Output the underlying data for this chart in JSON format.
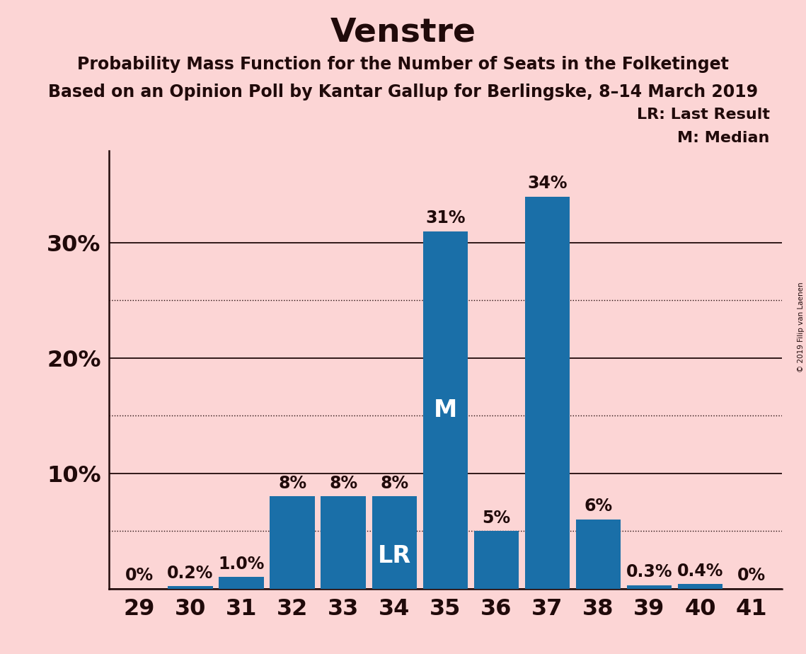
{
  "title": "Venstre",
  "subtitle1": "Probability Mass Function for the Number of Seats in the Folketinget",
  "subtitle2": "Based on an Opinion Poll by Kantar Gallup for Berlingske, 8–14 March 2019",
  "copyright": "© 2019 Filip van Laenen",
  "seats": [
    29,
    30,
    31,
    32,
    33,
    34,
    35,
    36,
    37,
    38,
    39,
    40,
    41
  ],
  "probabilities": [
    0.0,
    0.2,
    1.0,
    8.0,
    8.0,
    8.0,
    31.0,
    5.0,
    34.0,
    6.0,
    0.3,
    0.4,
    0.0
  ],
  "bar_labels": [
    "0%",
    "0.2%",
    "1.0%",
    "8%",
    "8%",
    "8%",
    "31%",
    "5%",
    "34%",
    "6%",
    "0.3%",
    "0.4%",
    "0%"
  ],
  "bar_color": "#1a6fa8",
  "background_color": "#fcd5d5",
  "text_color": "#200a0a",
  "lr_seat": 34,
  "median_seat": 35,
  "yticks": [
    10,
    20,
    30
  ],
  "ytick_labels": [
    "10%",
    "20%",
    "30%"
  ],
  "solid_lines": [
    0,
    10,
    20,
    30
  ],
  "dotted_lines": [
    5,
    15,
    25
  ],
  "ylim": [
    0,
    38
  ],
  "title_fontsize": 34,
  "subtitle_fontsize": 17,
  "tick_fontsize": 23,
  "bar_label_fontsize": 17,
  "inbar_fontsize": 24,
  "legend_fontsize": 16
}
